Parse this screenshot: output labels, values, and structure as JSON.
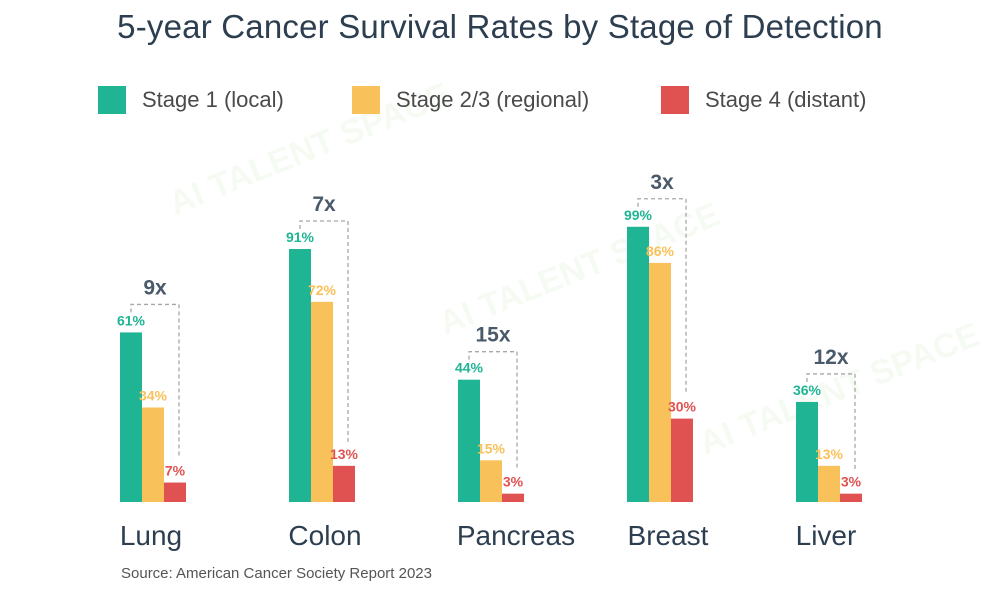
{
  "title": "5-year Cancer Survival Rates by Stage of Detection",
  "source": "Source: American Cancer Society Report 2023",
  "legend": [
    {
      "label": "Stage 1 (local)",
      "color": "#1fb594"
    },
    {
      "label": "Stage 2/3 (regional)",
      "color": "#f9c15a"
    },
    {
      "label": "Stage 4 (distant)",
      "color": "#e05252"
    }
  ],
  "chart_data": {
    "type": "bar",
    "title": "5-year Cancer Survival Rates by Stage of Detection",
    "xlabel": "",
    "ylabel": "",
    "ylim": [
      0,
      100
    ],
    "categories": [
      "Lung",
      "Colon",
      "Pancreas",
      "Breast",
      "Liver"
    ],
    "series": [
      {
        "name": "Stage 1 (local)",
        "color": "#1fb594",
        "values": [
          61,
          91,
          44,
          99,
          36
        ]
      },
      {
        "name": "Stage 2/3 (regional)",
        "color": "#f9c15a",
        "values": [
          34,
          72,
          15,
          86,
          13
        ]
      },
      {
        "name": "Stage 4 (distant)",
        "color": "#e05252",
        "values": [
          7,
          13,
          3,
          30,
          3
        ]
      }
    ],
    "ratio_labels": [
      "9x",
      "7x",
      "15x",
      "3x",
      "12x"
    ],
    "value_suffix": "%"
  }
}
